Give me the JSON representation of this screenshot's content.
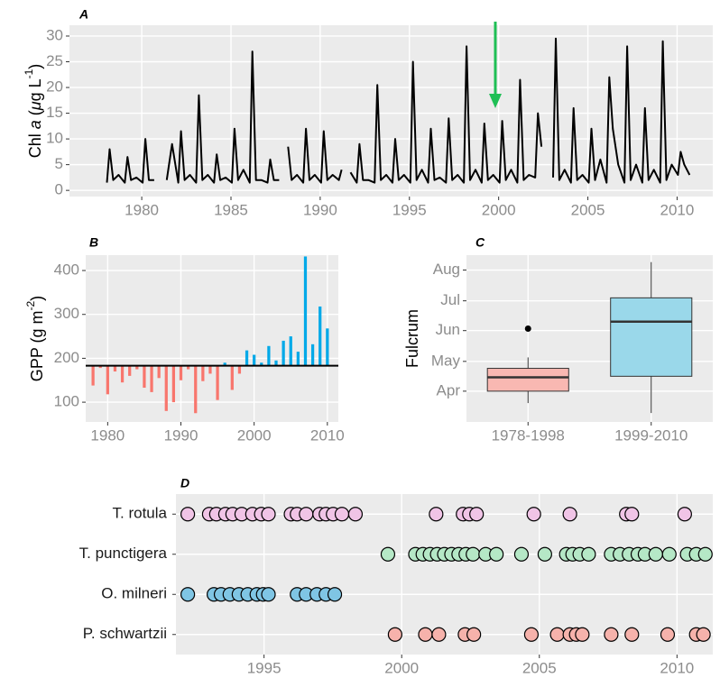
{
  "chart_data": [
    {
      "type": "line",
      "label": "A",
      "y_label": [
        "Chl ",
        "a",
        " (",
        "μ",
        "g L",
        "-1",
        ")"
      ],
      "color": "#000000",
      "x": [
        1978.05,
        1978.2,
        1978.4,
        1978.7,
        1979.05,
        1979.2,
        1979.4,
        1979.7,
        1980.05,
        1980.2,
        1980.4,
        1980.7,
        1981.05,
        1981.2,
        1981.4,
        1981.7,
        1982.05,
        1982.2,
        1982.4,
        1982.7,
        1983.05,
        1983.2,
        1983.4,
        1983.7,
        1984.05,
        1984.2,
        1984.4,
        1984.7,
        1985.05,
        1985.2,
        1985.4,
        1985.7,
        1986.05,
        1986.2,
        1986.4,
        1986.7,
        1987.05,
        1987.2,
        1987.4,
        1987.7,
        1988.05,
        1988.2,
        1988.4,
        1988.7,
        1989.05,
        1989.2,
        1989.4,
        1989.7,
        1990.05,
        1990.2,
        1990.4,
        1990.7,
        1991.05,
        1991.2,
        1991.4,
        1991.7,
        1992.05,
        1992.2,
        1992.4,
        1992.7,
        1993.05,
        1993.2,
        1993.4,
        1993.7,
        1994.05,
        1994.2,
        1994.4,
        1994.7,
        1995.05,
        1995.2,
        1995.4,
        1995.7,
        1996.05,
        1996.2,
        1996.4,
        1996.7,
        1997.05,
        1997.2,
        1997.4,
        1997.7,
        1998.05,
        1998.2,
        1998.4,
        1998.7,
        1999.05,
        1999.2,
        1999.4,
        1999.7,
        2000.05,
        2000.2,
        2000.4,
        2000.7,
        2001.05,
        2001.2,
        2001.4,
        2001.7,
        2002.05,
        2002.2,
        2002.4,
        2002.7,
        2003.05,
        2003.2,
        2003.4,
        2003.7,
        2004.05,
        2004.2,
        2004.4,
        2004.7,
        2005.05,
        2005.2,
        2005.4,
        2005.7,
        2006.05,
        2006.2,
        2006.4,
        2006.7,
        2007.05,
        2007.2,
        2007.4,
        2007.7,
        2008.05,
        2008.2,
        2008.4,
        2008.7,
        2009.05,
        2009.2,
        2009.4,
        2009.7,
        2010.05,
        2010.2,
        2010.4,
        2010.7
      ],
      "y": [
        1.5,
        8,
        2,
        3,
        1.5,
        6.5,
        2,
        2.5,
        1.5,
        10,
        2,
        2,
        null,
        null,
        2,
        9,
        1.5,
        11.5,
        2,
        3,
        1.5,
        18.5,
        2,
        3,
        1.5,
        7,
        2,
        2.5,
        1.5,
        12,
        2,
        4,
        1.5,
        27,
        2,
        2,
        1.5,
        6,
        2,
        2,
        null,
        8.5,
        2,
        3,
        1.5,
        12,
        2,
        3,
        1.5,
        11.5,
        2,
        3,
        2,
        4,
        null,
        3.5,
        1.5,
        9,
        2,
        2,
        1.5,
        20.5,
        2,
        3,
        1.5,
        10,
        2,
        3,
        1.5,
        25,
        2,
        4,
        1.5,
        12,
        2,
        2.5,
        1.5,
        14,
        2,
        3,
        1.5,
        28,
        2,
        4,
        1.5,
        13,
        2,
        3,
        1.5,
        13.5,
        2,
        4,
        1.5,
        21.5,
        2,
        3,
        2.5,
        15,
        8.5,
        null,
        2.5,
        29.5,
        2,
        4,
        1.5,
        16,
        2,
        3,
        1.5,
        12,
        2,
        6,
        1.5,
        22,
        12,
        5,
        1.5,
        28,
        2,
        5,
        1.5,
        16,
        2,
        4,
        1.5,
        29,
        2,
        5,
        3,
        7.5,
        5,
        3
      ],
      "xlim": [
        1975.95,
        2012
      ],
      "xticks": [
        1980,
        1985,
        1990,
        1995,
        2000,
        2005,
        2010
      ],
      "ylim": [
        -1.2,
        32.1
      ],
      "yticks": [
        0,
        5,
        10,
        15,
        20,
        25,
        30
      ],
      "grid": true
    },
    {
      "type": "bar",
      "label": "B",
      "y_label": [
        "GPP (g m",
        "-2",
        ")"
      ],
      "x": [
        1978,
        1979,
        1980,
        1981,
        1982,
        1983,
        1984,
        1985,
        1986,
        1987,
        1988,
        1989,
        1990,
        1991,
        1992,
        1993,
        1994,
        1995,
        1996,
        1997,
        1998,
        1999,
        2000,
        2001,
        2002,
        2003,
        2004,
        2005,
        2006,
        2007,
        2008,
        2009,
        2010
      ],
      "values": [
        138,
        178,
        118,
        170,
        145,
        160,
        175,
        133,
        123,
        155,
        80,
        100,
        150,
        175,
        75,
        148,
        165,
        105,
        190,
        128,
        165,
        218,
        208,
        190,
        228,
        195,
        240,
        250,
        215,
        432,
        232,
        318,
        268
      ],
      "baseline": 183,
      "below_color": "#f8766d",
      "above_color": "#00a9e8",
      "xlim": [
        1977,
        2011.5
      ],
      "xticks": [
        1980,
        1990,
        2000,
        2010
      ],
      "ylim": [
        55,
        435
      ],
      "yticks": [
        100,
        200,
        300,
        400
      ],
      "grid": true
    },
    {
      "type": "box",
      "label": "C",
      "y_label": "Fulcrum",
      "categories": [
        "1978-1998",
        "1999-2010"
      ],
      "colors": [
        "#f9b8b2",
        "#9ad8ea"
      ],
      "boxes": [
        {
          "whisker_low": 79,
          "q1": 91,
          "median": 105,
          "q3": 114,
          "whisker_high": 125,
          "outliers": [
            154
          ]
        },
        {
          "whisker_low": 69,
          "q1": 106,
          "median": 161,
          "q3": 185,
          "whisker_high": 221,
          "outliers": []
        }
      ],
      "ylim": [
        60,
        228
      ],
      "yticks": [
        {
          "value": 91,
          "label": "Apr"
        },
        {
          "value": 121,
          "label": "May"
        },
        {
          "value": 152,
          "label": "Jun"
        },
        {
          "value": 182,
          "label": "Jul"
        },
        {
          "value": 213,
          "label": "Aug"
        }
      ],
      "grid": true
    },
    {
      "type": "dot",
      "label": "D",
      "categories": [
        "T. rotula",
        "T. punctigera",
        "O. milneri",
        "P. schwartzii"
      ],
      "colors": [
        "#f0c4e6",
        "#b5e8c6",
        "#7fc5e4",
        "#f6b2ab"
      ],
      "values": [
        [
          1992.23,
          1993.01,
          1993.27,
          1993.6,
          1993.86,
          1994.19,
          1994.58,
          1994.9,
          1995.16,
          1995.98,
          1996.2,
          1996.53,
          1997.02,
          1997.25,
          1997.51,
          1997.83,
          1998.32,
          2001.25,
          2002.23,
          2002.46,
          2002.72,
          2004.8,
          2006.11,
          2008.16,
          2008.36,
          2010.28
        ],
        [
          1999.5,
          2000.5,
          2000.77,
          2001.03,
          2001.29,
          2001.55,
          2001.81,
          2002.07,
          2002.33,
          2002.59,
          2003.05,
          2003.44,
          2004.35,
          2005.2,
          2005.98,
          2006.21,
          2006.47,
          2006.79,
          2007.61,
          2007.93,
          2008.26,
          2008.58,
          2008.84,
          2009.23,
          2009.72,
          2010.37,
          2010.7,
          2011.03
        ],
        [
          1992.23,
          1993.18,
          1993.44,
          1993.76,
          1994.09,
          1994.41,
          1994.74,
          1994.97,
          1995.16,
          1996.2,
          1996.53,
          1996.92,
          1997.25,
          1997.57
        ],
        [
          1999.76,
          2000.86,
          2001.35,
          2002.3,
          2002.62,
          2004.71,
          2005.65,
          2006.11,
          2006.34,
          2006.56,
          2007.61,
          2008.36,
          2009.66,
          2010.7,
          2010.96
        ]
      ],
      "xlim": [
        1991.8,
        2011.3
      ],
      "xticks": [
        1995,
        2000,
        2005,
        2010
      ],
      "grid": true
    }
  ]
}
